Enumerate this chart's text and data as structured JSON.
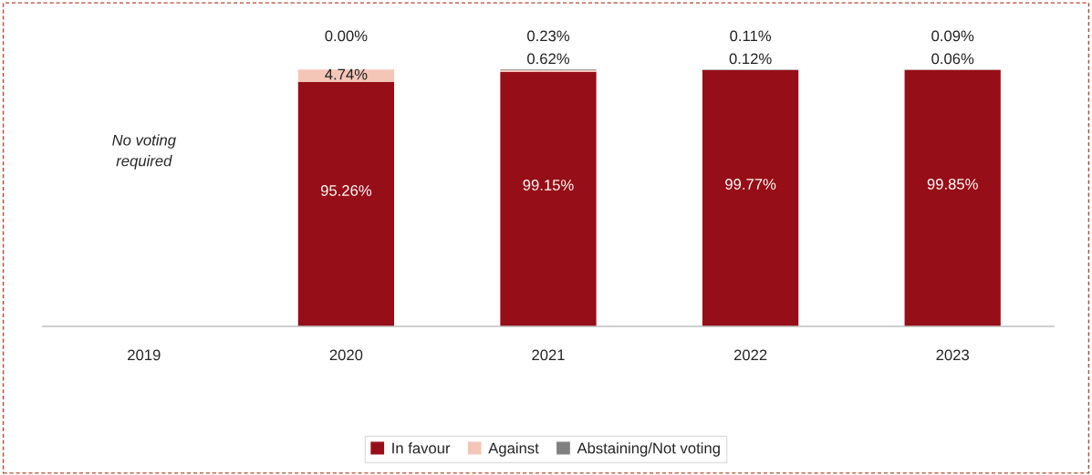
{
  "chart_data": {
    "type": "bar",
    "stacked": true,
    "legend": "bottom",
    "grid": false,
    "categories": [
      "2019",
      "2020",
      "2021",
      "2022",
      "2023"
    ],
    "series": [
      {
        "name": "In favour",
        "color": "#960e17",
        "values": [
          null,
          95.26,
          99.15,
          99.77,
          99.85
        ],
        "value_labels": [
          null,
          "95.26%",
          "99.15%",
          "99.77%",
          "99.85%"
        ]
      },
      {
        "name": "Against",
        "color": "#f4c6b8",
        "values": [
          null,
          4.74,
          0.62,
          0.12,
          0.06
        ],
        "value_labels": [
          null,
          "4.74%",
          "0.62%",
          "0.12%",
          "0.06%"
        ]
      },
      {
        "name": "Abstaining/Not voting",
        "color": "#808080",
        "values": [
          null,
          0.0,
          0.23,
          0.11,
          0.09
        ],
        "value_labels": [
          null,
          "0.00%",
          "0.23%",
          "0.11%",
          "0.09%"
        ]
      }
    ],
    "annotations": [
      "No voting\nrequired"
    ]
  }
}
